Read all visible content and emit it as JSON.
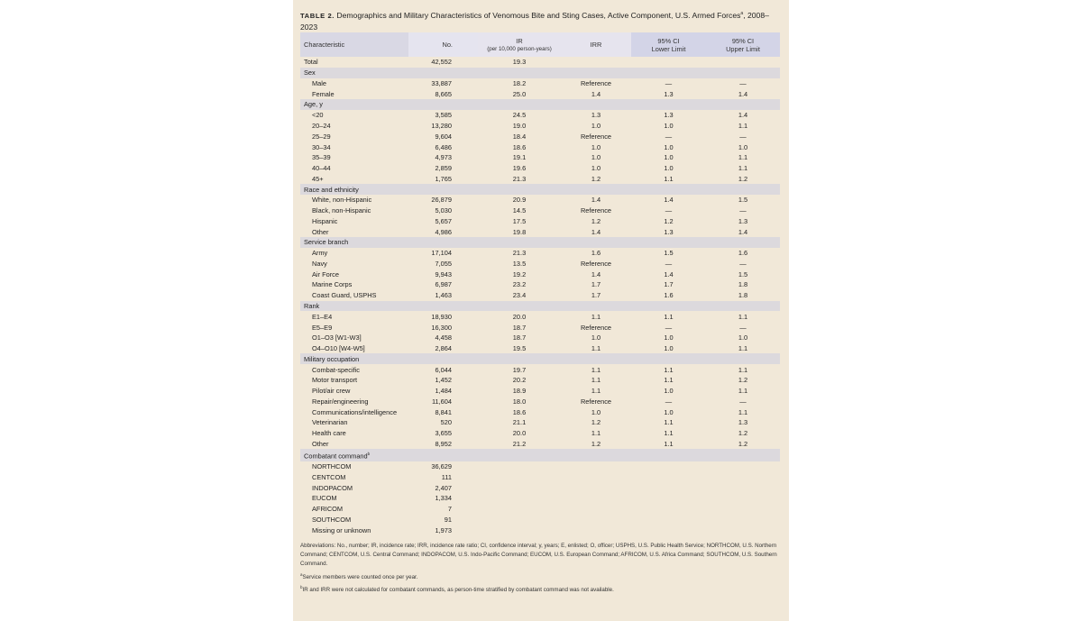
{
  "title": {
    "label": "TABLE 2.",
    "text": "Demographics and Military Characteristics of Venomous Bite and Sting Cases, Active Component, U.S. Armed Forces",
    "sup": "a",
    "years": ", 2008–2023"
  },
  "columns": [
    {
      "label": "Characteristic",
      "sub": ""
    },
    {
      "label": "No.",
      "sub": ""
    },
    {
      "label": "IR",
      "sub": "(per 10,000 person-years)"
    },
    {
      "label": "IRR",
      "sub": ""
    },
    {
      "label": "95% CI",
      "sub": "Lower Limit"
    },
    {
      "label": "95% CI",
      "sub": "Upper Limit"
    }
  ],
  "rows": [
    {
      "type": "total",
      "cells": [
        "Total",
        "42,552",
        "19.3",
        "",
        "",
        ""
      ]
    },
    {
      "type": "group",
      "cells": [
        "Sex"
      ]
    },
    {
      "type": "item",
      "cells": [
        "Male",
        "33,887",
        "18.2",
        "Reference",
        "—",
        "—"
      ]
    },
    {
      "type": "item",
      "cells": [
        "Female",
        "8,665",
        "25.0",
        "1.4",
        "1.3",
        "1.4"
      ]
    },
    {
      "type": "group",
      "cells": [
        "Age, y"
      ]
    },
    {
      "type": "item",
      "cells": [
        "<20",
        "3,585",
        "24.5",
        "1.3",
        "1.3",
        "1.4"
      ]
    },
    {
      "type": "item",
      "cells": [
        "20–24",
        "13,280",
        "19.0",
        "1.0",
        "1.0",
        "1.1"
      ]
    },
    {
      "type": "item",
      "cells": [
        "25–29",
        "9,604",
        "18.4",
        "Reference",
        "—",
        "—"
      ]
    },
    {
      "type": "item",
      "cells": [
        "30–34",
        "6,486",
        "18.6",
        "1.0",
        "1.0",
        "1.0"
      ]
    },
    {
      "type": "item",
      "cells": [
        "35–39",
        "4,973",
        "19.1",
        "1.0",
        "1.0",
        "1.1"
      ]
    },
    {
      "type": "item",
      "cells": [
        "40–44",
        "2,859",
        "19.6",
        "1.0",
        "1.0",
        "1.1"
      ]
    },
    {
      "type": "item",
      "cells": [
        "45+",
        "1,765",
        "21.3",
        "1.2",
        "1.1",
        "1.2"
      ]
    },
    {
      "type": "group",
      "cells": [
        "Race and ethnicity"
      ]
    },
    {
      "type": "item",
      "cells": [
        "White, non-Hispanic",
        "26,879",
        "20.9",
        "1.4",
        "1.4",
        "1.5"
      ]
    },
    {
      "type": "item",
      "cells": [
        "Black, non-Hispanic",
        "5,030",
        "14.5",
        "Reference",
        "—",
        "—"
      ]
    },
    {
      "type": "item",
      "cells": [
        "Hispanic",
        "5,657",
        "17.5",
        "1.2",
        "1.2",
        "1.3"
      ]
    },
    {
      "type": "item",
      "cells": [
        "Other",
        "4,986",
        "19.8",
        "1.4",
        "1.3",
        "1.4"
      ]
    },
    {
      "type": "group",
      "cells": [
        "Service branch"
      ]
    },
    {
      "type": "item",
      "cells": [
        "Army",
        "17,104",
        "21.3",
        "1.6",
        "1.5",
        "1.6"
      ]
    },
    {
      "type": "item",
      "cells": [
        "Navy",
        "7,055",
        "13.5",
        "Reference",
        "—",
        "—"
      ]
    },
    {
      "type": "item",
      "cells": [
        "Air Force",
        "9,943",
        "19.2",
        "1.4",
        "1.4",
        "1.5"
      ]
    },
    {
      "type": "item",
      "cells": [
        "Marine Corps",
        "6,987",
        "23.2",
        "1.7",
        "1.7",
        "1.8"
      ]
    },
    {
      "type": "item",
      "cells": [
        "Coast Guard, USPHS",
        "1,463",
        "23.4",
        "1.7",
        "1.6",
        "1.8"
      ]
    },
    {
      "type": "group",
      "cells": [
        "Rank"
      ]
    },
    {
      "type": "item",
      "cells": [
        "E1–E4",
        "18,930",
        "20.0",
        "1.1",
        "1.1",
        "1.1"
      ]
    },
    {
      "type": "item",
      "cells": [
        "E5–E9",
        "16,300",
        "18.7",
        "Reference",
        "—",
        "—"
      ]
    },
    {
      "type": "item",
      "cells": [
        "O1–O3 [W1-W3]",
        "4,458",
        "18.7",
        "1.0",
        "1.0",
        "1.0"
      ]
    },
    {
      "type": "item",
      "cells": [
        "O4–O10 [W4-W5]",
        "2,864",
        "19.5",
        "1.1",
        "1.0",
        "1.1"
      ]
    },
    {
      "type": "group",
      "cells": [
        "Military occupation"
      ]
    },
    {
      "type": "item",
      "cells": [
        "Combat-specific",
        "6,044",
        "19.7",
        "1.1",
        "1.1",
        "1.1"
      ]
    },
    {
      "type": "item",
      "cells": [
        "Motor transport",
        "1,452",
        "20.2",
        "1.1",
        "1.1",
        "1.2"
      ]
    },
    {
      "type": "item",
      "cells": [
        "Pilot/air crew",
        "1,484",
        "18.9",
        "1.1",
        "1.0",
        "1.1"
      ]
    },
    {
      "type": "item",
      "cells": [
        "Repair/engineering",
        "11,604",
        "18.0",
        "Reference",
        "—",
        "—"
      ]
    },
    {
      "type": "item",
      "cells": [
        "Communications/intelligence",
        "8,841",
        "18.6",
        "1.0",
        "1.0",
        "1.1"
      ]
    },
    {
      "type": "item",
      "cells": [
        "Veterinarian",
        "520",
        "21.1",
        "1.2",
        "1.1",
        "1.3"
      ]
    },
    {
      "type": "item",
      "cells": [
        "Health care",
        "3,655",
        "20.0",
        "1.1",
        "1.1",
        "1.2"
      ]
    },
    {
      "type": "item",
      "cells": [
        "Other",
        "8,952",
        "21.2",
        "1.2",
        "1.1",
        "1.2"
      ]
    },
    {
      "type": "group",
      "cells": [
        "Combatant command"
      ],
      "sup": "b"
    },
    {
      "type": "item",
      "cells": [
        "NORTHCOM",
        "36,629",
        "",
        "",
        "",
        ""
      ]
    },
    {
      "type": "item",
      "cells": [
        "CENTCOM",
        "111",
        "",
        "",
        "",
        ""
      ]
    },
    {
      "type": "item",
      "cells": [
        "INDOPACOM",
        "2,407",
        "",
        "",
        "",
        ""
      ]
    },
    {
      "type": "item",
      "cells": [
        "EUCOM",
        "1,334",
        "",
        "",
        "",
        ""
      ]
    },
    {
      "type": "item",
      "cells": [
        "AFRICOM",
        "7",
        "",
        "",
        "",
        ""
      ]
    },
    {
      "type": "item",
      "cells": [
        "SOUTHCOM",
        "91",
        "",
        "",
        "",
        ""
      ]
    },
    {
      "type": "item",
      "cells": [
        "Missing or unknown",
        "1,973",
        "",
        "",
        "",
        ""
      ]
    }
  ],
  "notes": {
    "abbreviations": "Abbreviations: No., number; IR, incidence rate; IRR, incidence rate ratio; CI, confidence interval; y, years; E, enlisted; O, officer; USPHS, U.S. Public Health Service; NORTHCOM, U.S. Northern Command; CENTCOM, U.S. Central Command; INDOPACOM, U.S. Indo-Pacific Command; EUCOM, U.S. European Command; AFRICOM, U.S. Africa Command; SOUTHCOM, U.S. Southern Command.",
    "a_mark": "a",
    "a": "Service members were counted once per year.",
    "b_mark": "b",
    "b": "IR and IRR were not calculated for combatant commands, as person-time stratified by combatant command was not available."
  }
}
